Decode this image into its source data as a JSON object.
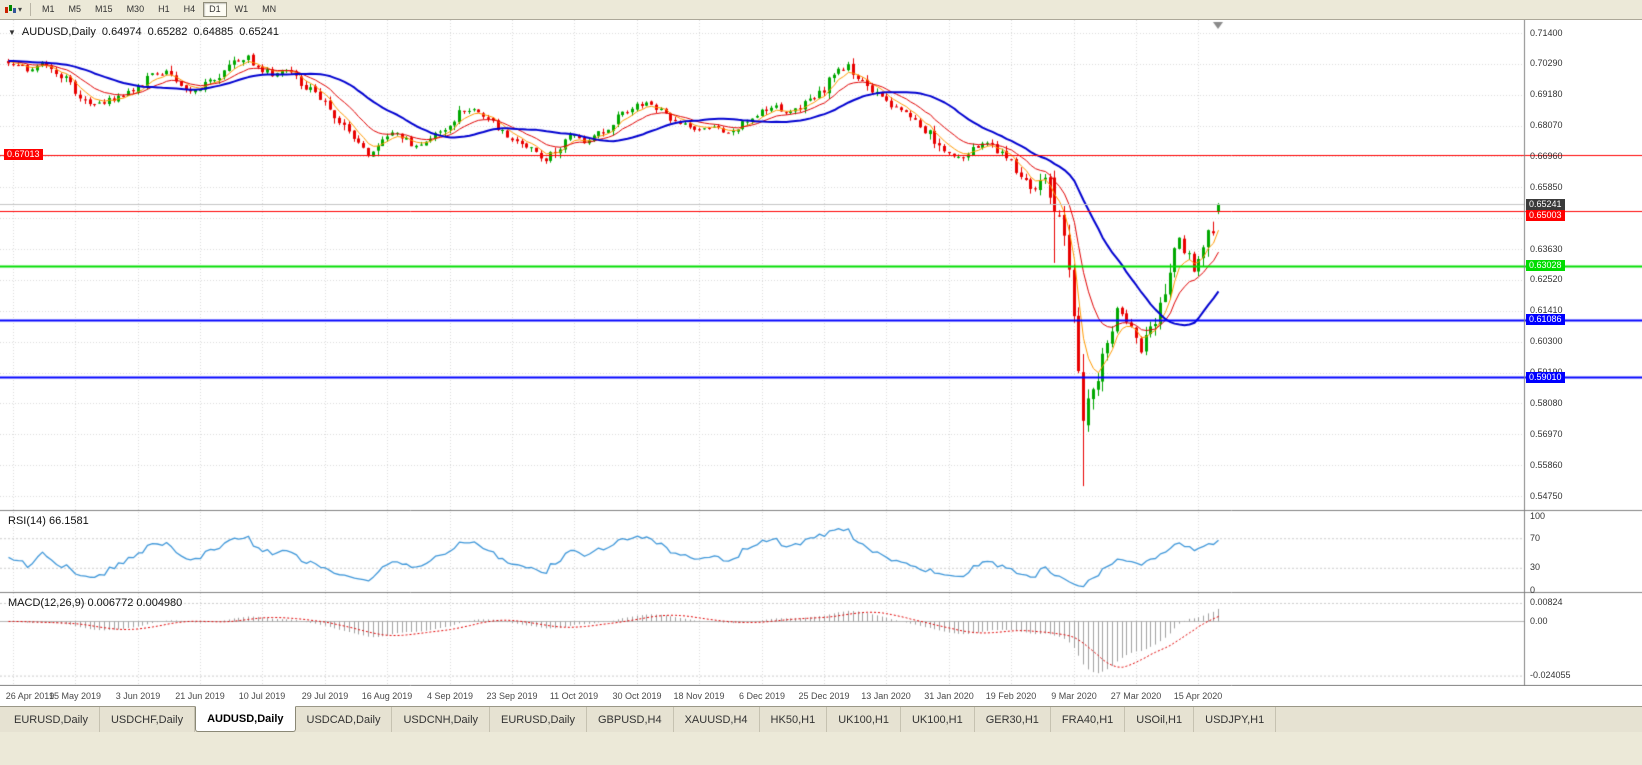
{
  "toolbar": {
    "timeframes": [
      "M1",
      "M5",
      "M15",
      "M30",
      "H1",
      "H4",
      "D1",
      "W1",
      "MN"
    ],
    "active_timeframe": "D1"
  },
  "chart": {
    "legend": {
      "symbol": "AUDUSD,Daily",
      "open": "0.64974",
      "high": "0.65282",
      "low": "0.64885",
      "close": "0.65241"
    }
  },
  "indicators": {
    "rsi": {
      "label": "RSI(14) 66.1581",
      "levels": [
        "100",
        "70",
        "30",
        "0"
      ],
      "color": "#3F97D9"
    },
    "macd": {
      "label": "MACD(12,26,9) 0.006772 0.004980",
      "levels": [
        "0.00824",
        "0.00",
        "-0.024055"
      ]
    }
  },
  "tabs": {
    "items": [
      "EURUSD,Daily",
      "USDCHF,Daily",
      "AUDUSD,Daily",
      "USDCAD,Daily",
      "USDCNH,Daily",
      "EURUSD,Daily",
      "GBPUSD,H4",
      "XAUUSD,H4",
      "HK50,H1",
      "UK100,H1",
      "UK100,H1",
      "GER30,H1",
      "FRA40,H1",
      "USOil,H1",
      "USDJPY,H1"
    ],
    "active_index": 2
  },
  "chart_data": {
    "type": "candlestick",
    "symbol": "AUDUSD",
    "timeframe": "Daily",
    "last_bar_ohlc": {
      "open": 0.64974,
      "high": 0.65282,
      "low": 0.64885,
      "close": 0.65241
    },
    "bar_count": 253,
    "warmup_bars": 30,
    "noise_seed": 11,
    "candle_up_color": "#00A800",
    "candle_down_color": "#E80000",
    "price_axis": {
      "top_value": 0.714,
      "ticks": [
        "0.71400",
        "0.70290",
        "0.69180",
        "0.68070",
        "0.66960",
        "0.65850",
        "0.64740",
        "0.63630",
        "0.62520",
        "0.61410",
        "0.60300",
        "0.59190",
        "0.58080",
        "0.56970",
        "0.55860",
        "0.54750"
      ]
    },
    "date_ticks": [
      "26 Apr 2019",
      "15 May 2019",
      "3 Jun 2019",
      "21 Jun 2019",
      "10 Jul 2019",
      "29 Jul 2019",
      "16 Aug 2019",
      "4 Sep 2019",
      "23 Sep 2019",
      "11 Oct 2019",
      "30 Oct 2019",
      "18 Nov 2019",
      "6 Dec 2019",
      "25 Dec 2019",
      "13 Jan 2020",
      "31 Jan 2020",
      "19 Feb 2020",
      "9 Mar 2020",
      "27 Mar 2020",
      "15 Apr 2020"
    ],
    "close_keyframes": [
      [
        0,
        0.7035
      ],
      [
        4,
        0.7008
      ],
      [
        8,
        0.703
      ],
      [
        13,
        0.696
      ],
      [
        17,
        0.6876
      ],
      [
        21,
        0.6898
      ],
      [
        26,
        0.6932
      ],
      [
        30,
        0.6985
      ],
      [
        33,
        0.7006
      ],
      [
        36,
        0.6948
      ],
      [
        39,
        0.693
      ],
      [
        43,
        0.6978
      ],
      [
        47,
        0.7032
      ],
      [
        50,
        0.7058
      ],
      [
        52,
        0.7018
      ],
      [
        55,
        0.6988
      ],
      [
        58,
        0.7012
      ],
      [
        61,
        0.6962
      ],
      [
        65,
        0.6905
      ],
      [
        68,
        0.6848
      ],
      [
        70,
        0.6802
      ],
      [
        73,
        0.6748
      ],
      [
        75,
        0.6692
      ],
      [
        78,
        0.6762
      ],
      [
        81,
        0.6788
      ],
      [
        84,
        0.6738
      ],
      [
        87,
        0.6752
      ],
      [
        91,
        0.6792
      ],
      [
        94,
        0.6856
      ],
      [
        97,
        0.6872
      ],
      [
        100,
        0.6832
      ],
      [
        104,
        0.6772
      ],
      [
        107,
        0.6746
      ],
      [
        110,
        0.6702
      ],
      [
        112,
        0.6676
      ],
      [
        115,
        0.6736
      ],
      [
        117,
        0.6772
      ],
      [
        120,
        0.6746
      ],
      [
        124,
        0.6786
      ],
      [
        127,
        0.6836
      ],
      [
        130,
        0.6876
      ],
      [
        133,
        0.6892
      ],
      [
        136,
        0.6856
      ],
      [
        140,
        0.6816
      ],
      [
        143,
        0.6792
      ],
      [
        147,
        0.6802
      ],
      [
        150,
        0.6782
      ],
      [
        153,
        0.6812
      ],
      [
        156,
        0.6842
      ],
      [
        159,
        0.6876
      ],
      [
        163,
        0.6856
      ],
      [
        166,
        0.6882
      ],
      [
        170,
        0.6942
      ],
      [
        173,
        0.7006
      ],
      [
        175,
        0.7022
      ],
      [
        178,
        0.6962
      ],
      [
        182,
        0.6902
      ],
      [
        185,
        0.6872
      ],
      [
        188,
        0.6842
      ],
      [
        192,
        0.6776
      ],
      [
        195,
        0.6706
      ],
      [
        198,
        0.6692
      ],
      [
        201,
        0.6722
      ],
      [
        204,
        0.6742
      ],
      [
        208,
        0.6692
      ],
      [
        211,
        0.6616
      ],
      [
        214,
        0.6572
      ],
      [
        216,
        0.6622
      ],
      [
        218,
        0.6498
      ],
      [
        219,
        0.651
      ],
      [
        221,
        0.629
      ],
      [
        223,
        0.5925
      ],
      [
        224,
        0.5745
      ],
      [
        226,
        0.5862
      ],
      [
        228,
        0.5962
      ],
      [
        231,
        0.6132
      ],
      [
        234,
        0.6092
      ],
      [
        236,
        0.5992
      ],
      [
        238,
        0.6072
      ],
      [
        241,
        0.6232
      ],
      [
        244,
        0.6405
      ],
      [
        247,
        0.6285
      ],
      [
        249,
        0.6362
      ],
      [
        251,
        0.6452
      ],
      [
        252,
        0.65241
      ]
    ],
    "bar_overrides": [
      {
        "i": 218,
        "o": 0.662,
        "h": 0.6645,
        "l": 0.6313,
        "c": 0.6498
      },
      {
        "i": 224,
        "o": 0.592,
        "h": 0.5985,
        "l": 0.551,
        "c": 0.5745
      },
      {
        "i": 252,
        "o": 0.64974,
        "h": 0.65282,
        "l": 0.64885,
        "c": 0.65241
      }
    ],
    "horizontal_lines": [
      {
        "price": 0.67013,
        "label": "0.67013",
        "color": "#FF0000",
        "width": 1,
        "tag_side": "left"
      },
      {
        "price": 0.65003,
        "label": "0.65003",
        "color": "#FF0000",
        "width": 1,
        "tag_side": "right"
      },
      {
        "price": 0.63028,
        "label": "0.63028",
        "color": "#00DD00",
        "width": 2,
        "tag_side": "right"
      },
      {
        "price": 0.61086,
        "label": "0.61086",
        "color": "#0000FF",
        "width": 2,
        "tag_side": "right"
      },
      {
        "price": 0.5901,
        "label": "0.59010",
        "color": "#0000FF",
        "width": 2,
        "tag_side": "right"
      }
    ],
    "current_price": {
      "value": 0.65241,
      "label": "0.65241",
      "line_color": "#C4C4C4",
      "tag_color": "#3A3A3A"
    },
    "moving_averages": [
      {
        "type": "ema",
        "period": 5,
        "color": "#FF9900",
        "width": 1
      },
      {
        "type": "ema",
        "period": 12,
        "color": "#E00000",
        "width": 1
      },
      {
        "type": "sma",
        "period": 25,
        "color": "#0000D0",
        "width": 2
      }
    ],
    "rsi": {
      "period": 14,
      "last_value": 66.1581,
      "color": "#3F97D9",
      "levels": [
        70,
        30
      ],
      "scale": [
        0,
        100
      ]
    },
    "macd": {
      "fast": 12,
      "slow": 26,
      "signal": 9,
      "value": 0.006772,
      "signal_value": 0.00498,
      "histogram_color": "#A0A0A0",
      "signal_color": "#E00000",
      "scale_max": 0.00824,
      "scale_min": -0.024055
    }
  }
}
